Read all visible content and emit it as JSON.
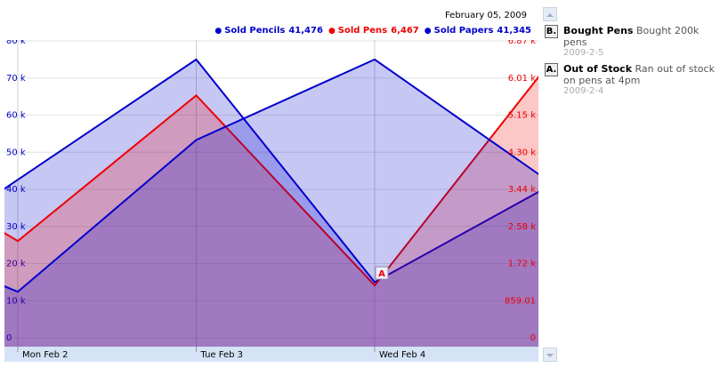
{
  "chart_data": {
    "type": "area",
    "date": "February 05, 2009",
    "categories": [
      null,
      "Mon Feb 2",
      "Tue Feb 3",
      "Wed Feb 4",
      null
    ],
    "series": [
      {
        "name": "Sold Pencils",
        "color": "#0000cc",
        "values": [
          10000,
          42600,
          75000,
          15000,
          41476
        ],
        "value_labels": [
          null,
          null,
          null,
          null,
          "41,476"
        ]
      },
      {
        "name": "Sold Pens",
        "color": "#ee0000",
        "axis": "y2",
        "values": [
          4700,
          2240,
          5610,
          1212,
          6467
        ],
        "value_labels": [
          null,
          null,
          null,
          null,
          "6,467"
        ]
      },
      {
        "name": "Sold Papers",
        "color": "#0000cc",
        "values": [
          32000,
          12400,
          53300,
          75000,
          41345
        ],
        "value_labels": [
          null,
          null,
          null,
          null,
          "41,345"
        ]
      }
    ],
    "ylim": [
      0,
      80000
    ],
    "yticks": [
      0,
      {
        "value": 10000,
        "label": "10 k"
      },
      {
        "value": 20000,
        "label": "20 k"
      },
      {
        "value": 30000,
        "label": "30 k"
      },
      {
        "value": 40000,
        "label": "40 k"
      },
      {
        "value": 50000,
        "label": "50 k"
      },
      {
        "value": 60000,
        "label": "60 k"
      },
      {
        "value": 70000,
        "label": "70 k"
      },
      {
        "value": 80000,
        "label": "80 k"
      }
    ],
    "y2lim": [
      0,
      6872.08
    ],
    "y2ticks": [
      0,
      859.01,
      {
        "value": 1718.02,
        "label": "1.72 k"
      },
      {
        "value": 2577.03,
        "label": "2.58 k"
      },
      {
        "value": 3436.04,
        "label": "3.44 k"
      },
      {
        "value": 4295.05,
        "label": "4.30 k"
      },
      {
        "value": 5154.06,
        "label": "5.15 k"
      },
      {
        "value": 6013.07,
        "label": "6.01 k"
      },
      {
        "value": 6872.08,
        "label": "6.87 k"
      }
    ],
    "grid": true,
    "annotations": [
      {
        "marker": "B",
        "flag": "B.",
        "title": "Bought Pens",
        "text": "Bought 200k pens",
        "date": "2009-2-5"
      },
      {
        "marker": "A",
        "flag": "A.",
        "title": "Out of Stock",
        "text": "Ran out of stock on pens at 4pm",
        "date": "2009-2-4",
        "category": 3,
        "series": 1
      }
    ]
  }
}
